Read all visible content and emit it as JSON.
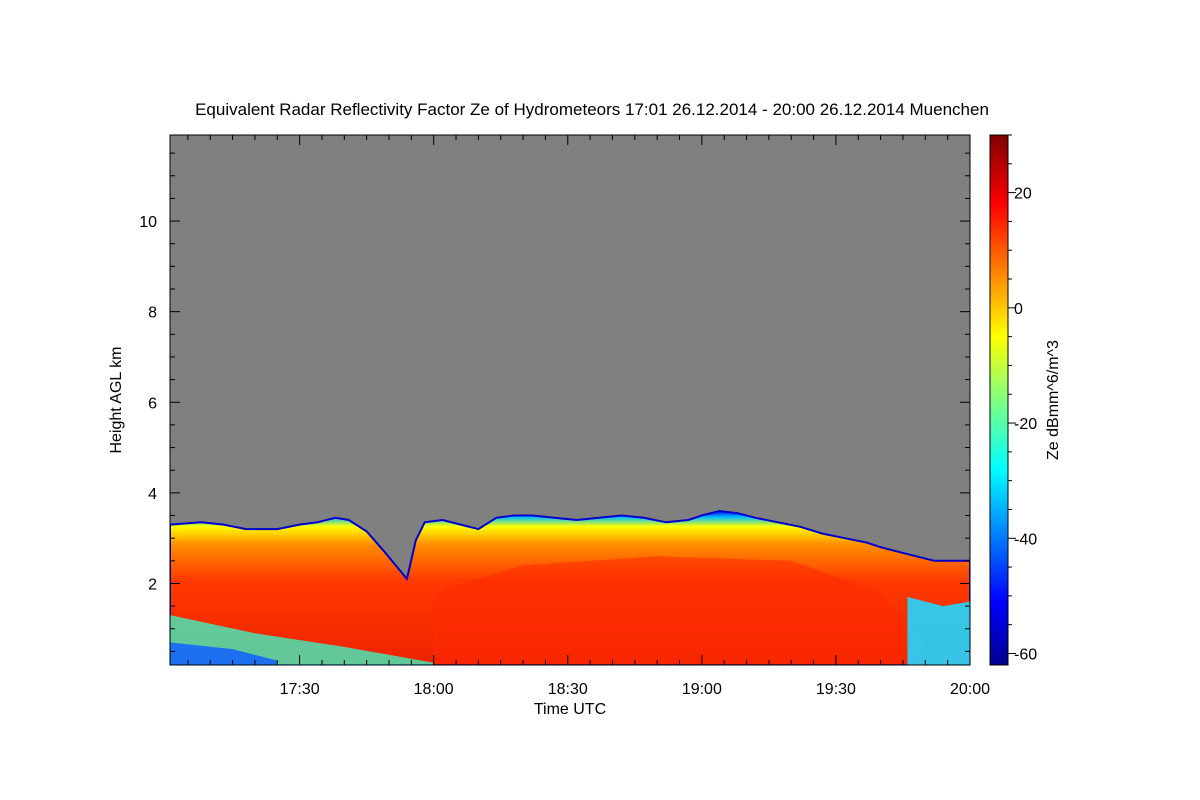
{
  "chart_data": {
    "type": "heatmap",
    "title": "Equivalent Radar Reflectivity Factor Ze of Hydrometeors   17:01 26.12.2014 - 20:00 26.12.2014 Muenchen",
    "xlabel": "Time UTC",
    "ylabel": "Height AGL km",
    "colorbar_label": "Ze dBmm^6/m^3",
    "xlim_minutes_utc": [
      1021,
      1200
    ],
    "ylim_km": [
      0.2,
      11.9
    ],
    "x_ticks": [
      {
        "minutes": 1050,
        "label": "17:30"
      },
      {
        "minutes": 1080,
        "label": "18:00"
      },
      {
        "minutes": 1110,
        "label": "18:30"
      },
      {
        "minutes": 1140,
        "label": "19:00"
      },
      {
        "minutes": 1170,
        "label": "19:30"
      },
      {
        "minutes": 1200,
        "label": "20:00"
      }
    ],
    "y_ticks": [
      {
        "km": 2,
        "label": "2"
      },
      {
        "km": 4,
        "label": "4"
      },
      {
        "km": 6,
        "label": "6"
      },
      {
        "km": 8,
        "label": "8"
      },
      {
        "km": 10,
        "label": "10"
      }
    ],
    "colorbar_range_dBZ": [
      -62,
      30
    ],
    "colorbar_ticks": [
      {
        "value": 20,
        "label": "20"
      },
      {
        "value": 0,
        "label": "0"
      },
      {
        "value": -20,
        "label": "-20"
      },
      {
        "value": -40,
        "label": "-40"
      },
      {
        "value": -60,
        "label": "-60"
      }
    ],
    "no_data_color": "#808080",
    "colormap": "jet",
    "echo_top_km": {
      "times_minutes": [
        1021,
        1028,
        1033,
        1038,
        1045,
        1050,
        1054,
        1058,
        1061,
        1065,
        1069,
        1074,
        1076,
        1078,
        1082,
        1086,
        1090,
        1094,
        1098,
        1102,
        1107,
        1112,
        1117,
        1122,
        1127,
        1132,
        1137,
        1140,
        1144,
        1148,
        1152,
        1157,
        1162,
        1167,
        1172,
        1177,
        1180,
        1184,
        1188,
        1192,
        1196,
        1200
      ],
      "values": [
        3.3,
        3.35,
        3.3,
        3.2,
        3.2,
        3.3,
        3.35,
        3.45,
        3.4,
        3.15,
        2.7,
        2.1,
        2.95,
        3.35,
        3.4,
        3.3,
        3.2,
        3.45,
        3.5,
        3.5,
        3.45,
        3.4,
        3.45,
        3.5,
        3.45,
        3.35,
        3.4,
        3.5,
        3.6,
        3.55,
        3.45,
        3.35,
        3.25,
        3.1,
        3.0,
        2.9,
        2.8,
        2.7,
        2.6,
        2.5,
        2.5,
        2.5
      ]
    },
    "reflectivity_core": {
      "strong_core_minutes": [
        1080,
        1190
      ],
      "peak_dBZ": 28,
      "typical_core_dBZ": 15,
      "cloud_base_km": 0.2
    }
  }
}
